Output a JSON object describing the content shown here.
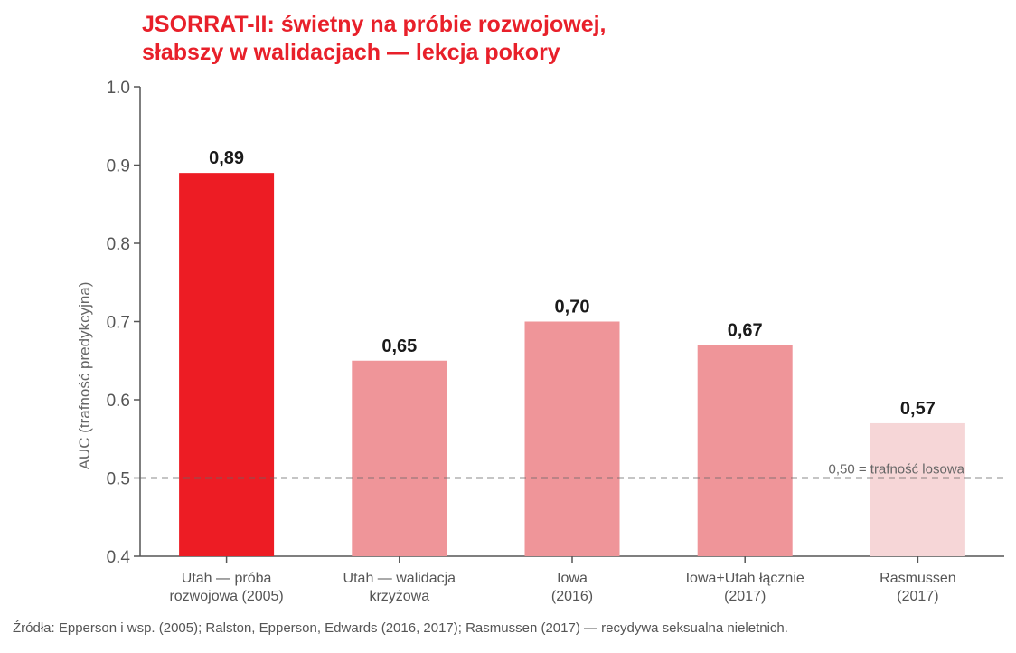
{
  "title_lines": [
    "JSORRAT-II: świetny na próbie rozwojowej,",
    "słabszy w walidacjach — lekcja pokory"
  ],
  "source": "Źródła: Epperson i wsp. (2005); Ralston, Epperson, Edwards (2016, 2017); Rasmussen (2017) — recydywa seksualna nieletnich.",
  "chart_data": {
    "type": "bar",
    "title": "JSORRAT-II: świetny na próbie rozwojowej, słabszy w walidacjach — lekcja pokory",
    "ylabel": "AUC (trafność predykcyjna)",
    "xlabel": "",
    "ylim": [
      0.4,
      1.0
    ],
    "yticks": [
      0.4,
      0.5,
      0.6,
      0.7,
      0.8,
      0.9,
      1.0
    ],
    "ytick_labels": [
      "0.4",
      "0.5",
      "0.6",
      "0.7",
      "0.8",
      "0.9",
      "1.0"
    ],
    "grid": false,
    "categories": [
      [
        "Utah — próba",
        "rozwojowa (2005)"
      ],
      [
        "Utah — walidacja",
        "krzyżowa"
      ],
      [
        "Iowa",
        "(2016)"
      ],
      [
        "Iowa+Utah łącznie",
        "(2017)"
      ],
      [
        "Rasmussen",
        "(2017)"
      ]
    ],
    "values": [
      0.89,
      0.65,
      0.7,
      0.67,
      0.57
    ],
    "value_labels": [
      "0,89",
      "0,65",
      "0,70",
      "0,67",
      "0,57"
    ],
    "colors": [
      "#ed1c24",
      "#ef9599",
      "#ef9599",
      "#ef9599",
      "#f6d6d7"
    ],
    "reference_line": {
      "y": 0.5,
      "label": "0,50 = trafność losowa",
      "color": "#666666",
      "style": "dashed"
    }
  }
}
